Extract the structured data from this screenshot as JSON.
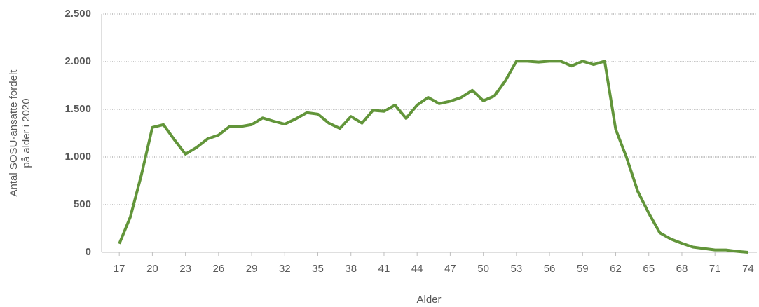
{
  "chart_data": {
    "type": "line",
    "x_label": "Alder",
    "y_label": [
      "Antal SOSU-ansatte fordelt",
      "på alder i 2020"
    ],
    "x": [
      17,
      18,
      19,
      20,
      21,
      22,
      23,
      24,
      25,
      26,
      27,
      28,
      29,
      30,
      31,
      32,
      33,
      34,
      35,
      36,
      37,
      38,
      39,
      40,
      41,
      42,
      43,
      44,
      45,
      46,
      47,
      48,
      49,
      50,
      51,
      52,
      53,
      54,
      55,
      56,
      57,
      58,
      59,
      60,
      61,
      62,
      63,
      64,
      65,
      66,
      67,
      68,
      69,
      70,
      71,
      72,
      73,
      74
    ],
    "series": [
      {
        "name": "Antal",
        "color": "#62953a",
        "values": [
          90,
          370,
          810,
          1310,
          1340,
          1180,
          1030,
          1100,
          1190,
          1230,
          1320,
          1320,
          1340,
          1410,
          1375,
          1345,
          1400,
          1465,
          1450,
          1355,
          1300,
          1425,
          1355,
          1490,
          1480,
          1545,
          1405,
          1545,
          1625,
          1560,
          1585,
          1625,
          1700,
          1590,
          1640,
          1800,
          2005,
          2005,
          1995,
          2005,
          2005,
          1955,
          2005,
          1970,
          2005,
          1290,
          990,
          640,
          410,
          205,
          140,
          95,
          55,
          40,
          25,
          25,
          10,
          0
        ]
      }
    ],
    "xlim": [
      15.4,
      74.8
    ],
    "xticks": [
      17,
      20,
      23,
      26,
      29,
      32,
      35,
      38,
      41,
      44,
      47,
      50,
      53,
      56,
      59,
      62,
      65,
      68,
      71,
      74
    ],
    "ylim": [
      0,
      2500
    ],
    "yticks": [
      0,
      500,
      {
        "value": 1000,
        "label": "1.000"
      },
      {
        "value": 1500,
        "label": "1.500"
      },
      {
        "value": 2000,
        "label": "2.000"
      },
      {
        "value": 2500,
        "label": "2.500"
      }
    ],
    "grid": true
  }
}
